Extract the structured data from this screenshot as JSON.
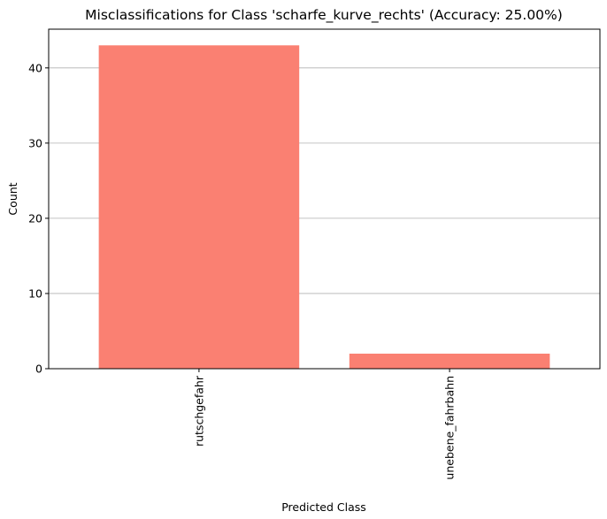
{
  "chart_data": {
    "type": "bar",
    "title": "Misclassifications for Class 'scharfe_kurve_rechts' (Accuracy: 25.00%)",
    "xlabel": "Predicted Class",
    "ylabel": "Count",
    "categories": [
      "rutschgefahr",
      "unebene_fahrbahn"
    ],
    "values": [
      43,
      2
    ],
    "ylim": [
      0,
      45.15
    ],
    "yticks": [
      0,
      10,
      20,
      30,
      40
    ],
    "grid": "y-axis",
    "bar_color": "#fa8072",
    "x_tick_rotation": 90
  }
}
